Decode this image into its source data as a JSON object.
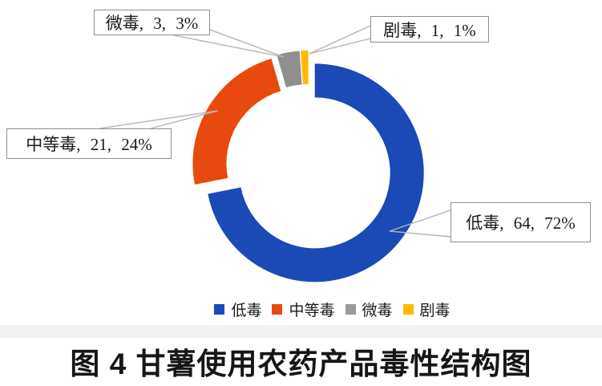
{
  "chart_data": {
    "type": "pie",
    "subtype": "doughnut",
    "title": "图 4 甘薯使用农药产品毒性结构图",
    "categories": [
      "低毒",
      "中等毒",
      "微毒",
      "剧毒"
    ],
    "values": [
      64,
      21,
      3,
      1
    ],
    "percent_labels": [
      "72%",
      "24%",
      "3%",
      "1%"
    ],
    "colors": [
      "#1b49b5",
      "#e8490e",
      "#8f8f8f",
      "#ffb900"
    ],
    "slice_ids": [
      "low-toxicity",
      "moderate-toxicity",
      "slight-toxicity",
      "high-toxicity"
    ],
    "data_labels": [
      "低毒, 64, 72%",
      "中等毒, 21, 24%",
      "微毒, 3, 3%",
      "剧毒, 1, 1%"
    ],
    "legend_entries": [
      "低毒",
      "中等毒",
      "微毒",
      "剧毒"
    ],
    "legend_position": "bottom",
    "grid": false
  },
  "callouts": {
    "didu": {
      "label": "低毒, 64, 72%"
    },
    "zhongdengdu": {
      "label": "中等毒, 21, 24%"
    },
    "weidu": {
      "label": "微毒, 3, 3%"
    },
    "judu": {
      "label": "剧毒, 1, 1%"
    }
  },
  "legend": {
    "items": [
      {
        "label": "低毒",
        "color": "#1b49b5"
      },
      {
        "label": "中等毒",
        "color": "#e8490e"
      },
      {
        "label": "微毒",
        "color": "#9a9a9a"
      },
      {
        "label": "剧毒",
        "color": "#ffb900"
      }
    ]
  },
  "caption": {
    "text": "图 4 甘薯使用农药产品毒性结构图"
  },
  "leader_line_color": "#b4b4b4"
}
